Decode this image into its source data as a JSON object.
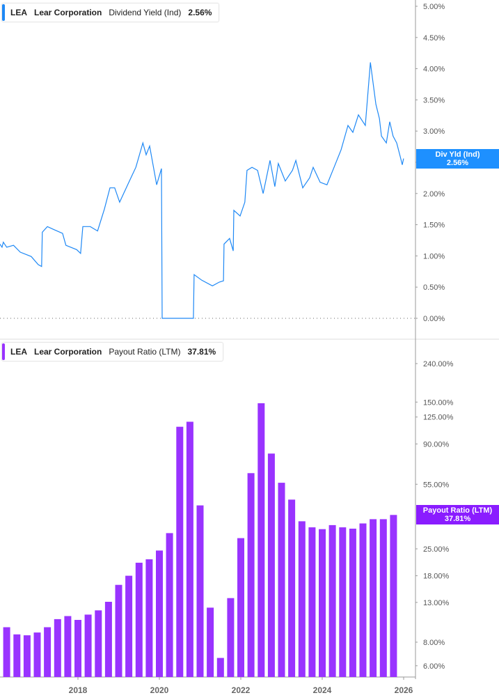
{
  "colors": {
    "yield": "#1e88f5",
    "payout": "#9933ff",
    "payout_tag": "#8a1cff",
    "axis": "#999999",
    "label": "#555555"
  },
  "top_legend": {
    "ticker": "LEA",
    "company": "Lear Corporation",
    "metric": "Dividend Yield (Ind)",
    "value": "2.56%"
  },
  "bottom_legend": {
    "ticker": "LEA",
    "company": "Lear Corporation",
    "metric": "Payout Ratio (LTM)",
    "value": "37.81%"
  },
  "top_tag": {
    "label": "Div Yld (Ind)",
    "value": "2.56%"
  },
  "bottom_tag": {
    "label": "Payout Ratio (LTM)",
    "value": "37.81%"
  },
  "chart_data": [
    {
      "type": "line",
      "series": [
        {
          "name": "Dividend Yield (Ind)",
          "points": [
            [
              "2016-02-01",
              1.19
            ],
            [
              "2016-02-20",
              1.14
            ],
            [
              "2016-03-01",
              1.22
            ],
            [
              "2016-04-01",
              1.14
            ],
            [
              "2016-06-01",
              1.17
            ],
            [
              "2016-08-01",
              1.06
            ],
            [
              "2016-11-08",
              0.99
            ],
            [
              "2017-01-10",
              0.86
            ],
            [
              "2017-02-10",
              0.83
            ],
            [
              "2017-02-16",
              1.38
            ],
            [
              "2017-04-01",
              1.47
            ],
            [
              "2017-06-01",
              1.42
            ],
            [
              "2017-08-15",
              1.36
            ],
            [
              "2017-09-15",
              1.17
            ],
            [
              "2017-12-20",
              1.1
            ],
            [
              "2018-01-25",
              1.04
            ],
            [
              "2018-02-14",
              1.47
            ],
            [
              "2018-04-20",
              1.47
            ],
            [
              "2018-06-25",
              1.4
            ],
            [
              "2018-08-25",
              1.75
            ],
            [
              "2018-10-14",
              2.09
            ],
            [
              "2018-11-26",
              2.09
            ],
            [
              "2019-01-10",
              1.86
            ],
            [
              "2019-04-01",
              2.18
            ],
            [
              "2019-06-03",
              2.42
            ],
            [
              "2019-08-05",
              2.81
            ],
            [
              "2019-09-04",
              2.62
            ],
            [
              "2019-10-05",
              2.76
            ],
            [
              "2019-12-07",
              2.14
            ],
            [
              "2020-01-20",
              2.4
            ],
            [
              "2020-01-26",
              0.0
            ],
            [
              "2020-11-02",
              0.0
            ],
            [
              "2020-11-08",
              0.7
            ],
            [
              "2021-01-16",
              0.61
            ],
            [
              "2021-04-20",
              0.52
            ],
            [
              "2021-06-21",
              0.58
            ],
            [
              "2021-07-28",
              0.6
            ],
            [
              "2021-08-03",
              1.19
            ],
            [
              "2021-09-22",
              1.28
            ],
            [
              "2021-10-24",
              1.08
            ],
            [
              "2021-10-30",
              1.73
            ],
            [
              "2021-12-25",
              1.64
            ],
            [
              "2022-02-07",
              1.86
            ],
            [
              "2022-02-26",
              2.37
            ],
            [
              "2022-04-10",
              2.42
            ],
            [
              "2022-05-30",
              2.37
            ],
            [
              "2022-07-19",
              2.0
            ],
            [
              "2022-09-20",
              2.53
            ],
            [
              "2022-11-02",
              2.11
            ],
            [
              "2022-12-03",
              2.48
            ],
            [
              "2023-02-04",
              2.2
            ],
            [
              "2023-04-08",
              2.37
            ],
            [
              "2023-05-08",
              2.53
            ],
            [
              "2023-07-09",
              2.09
            ],
            [
              "2023-09-10",
              2.25
            ],
            [
              "2023-10-11",
              2.42
            ],
            [
              "2023-12-13",
              2.18
            ],
            [
              "2024-02-13",
              2.14
            ],
            [
              "2024-04-16",
              2.42
            ],
            [
              "2024-06-18",
              2.7
            ],
            [
              "2024-08-19",
              3.09
            ],
            [
              "2024-10-02",
              2.98
            ],
            [
              "2024-11-21",
              3.26
            ],
            [
              "2025-01-22",
              3.09
            ],
            [
              "2025-03-07",
              4.1
            ],
            [
              "2025-04-26",
              3.43
            ],
            [
              "2025-05-27",
              3.2
            ],
            [
              "2025-06-15",
              2.92
            ],
            [
              "2025-07-28",
              2.81
            ],
            [
              "2025-08-28",
              3.15
            ],
            [
              "2025-09-28",
              2.92
            ],
            [
              "2025-10-30",
              2.81
            ],
            [
              "2025-12-01",
              2.59
            ],
            [
              "2025-12-19",
              2.46
            ],
            [
              "2025-12-31",
              2.56
            ]
          ]
        }
      ],
      "y_ticks": [
        "5.00%",
        "4.50%",
        "4.00%",
        "3.50%",
        "3.00%",
        "2.50%",
        "2.00%",
        "1.50%",
        "1.00%",
        "0.50%",
        "0.00%"
      ],
      "y_tick_values": [
        5,
        4.5,
        4,
        3.5,
        3,
        2.5,
        2,
        1.5,
        1,
        0.5,
        0
      ],
      "ylim": [
        0,
        5
      ],
      "zero_line": "dotted",
      "grid": false
    },
    {
      "type": "bar",
      "y_scale": "log",
      "series": [
        {
          "name": "Payout Ratio (LTM)",
          "categories": [
            "2015-12",
            "2016-03",
            "2016-06",
            "2016-09",
            "2016-12",
            "2017-03",
            "2017-06",
            "2017-09",
            "2017-12",
            "2018-03",
            "2018-06",
            "2018-09",
            "2018-12",
            "2019-03",
            "2019-06",
            "2019-09",
            "2019-12",
            "2020-03",
            "2020-06",
            "2020-09",
            "2020-12",
            "2021-03",
            "2021-06",
            "2021-09",
            "2021-12",
            "2022-03",
            "2022-06",
            "2022-09",
            "2022-12",
            "2023-03",
            "2023-06",
            "2023-09",
            "2023-12",
            "2024-03",
            "2024-06",
            "2024-09",
            "2024-12",
            "2025-03",
            "2025-06",
            "2025-09"
          ],
          "values": [
            10.5,
            9.6,
            8.8,
            8.7,
            9.0,
            9.6,
            10.6,
            11.0,
            10.5,
            11.2,
            11.8,
            13.1,
            16.1,
            18.0,
            21.1,
            22.0,
            24.5,
            30.3,
            111,
            118,
            42.5,
            12.2,
            6.6,
            13.7,
            28.5,
            63,
            148,
            80,
            56,
            45.6,
            35,
            32.5,
            31.8,
            33.4,
            32.5,
            32,
            34.1,
            35.9,
            35.9,
            37.81
          ]
        }
      ],
      "y_ticks": [
        "240.00%",
        "150.00%",
        "125.00%",
        "90.00%",
        "55.00%",
        "25.00%",
        "18.00%",
        "13.00%",
        "8.00%",
        "6.00%"
      ],
      "y_tick_values": [
        240,
        150,
        125,
        90,
        55,
        25,
        18,
        13,
        8,
        6
      ],
      "ylim": [
        5.2,
        240
      ],
      "x_ticks": [
        "2018",
        "2020",
        "2022",
        "2024",
        "2026"
      ],
      "grid": false
    }
  ]
}
